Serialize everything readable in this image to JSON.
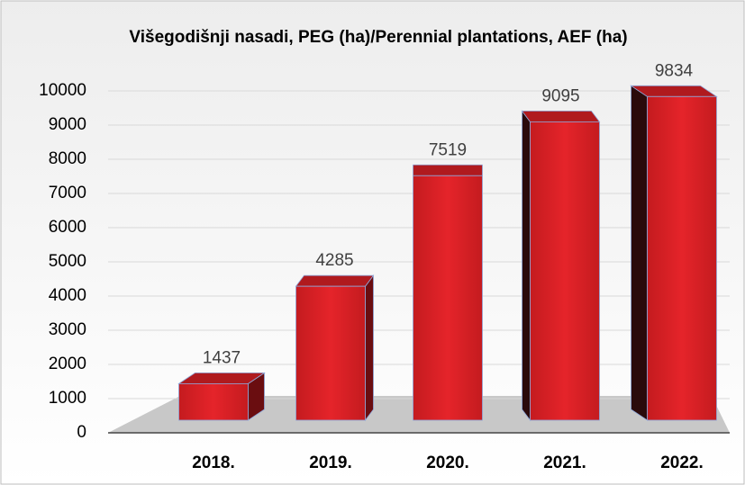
{
  "chart_data": {
    "type": "bar3d",
    "title": "Višegodišnji nasadi, PEG (ha)/Perennial plantations, AEF (ha)",
    "categories": [
      "2018.",
      "2019.",
      "2020.",
      "2021.",
      "2022."
    ],
    "values": [
      1437,
      4285,
      7519,
      9095,
      9834
    ],
    "color": "#d81e22",
    "ylim": [
      0,
      10000
    ],
    "yticks": [
      0,
      1000,
      2000,
      3000,
      4000,
      5000,
      6000,
      7000,
      8000,
      9000,
      10000
    ],
    "grid": true
  }
}
